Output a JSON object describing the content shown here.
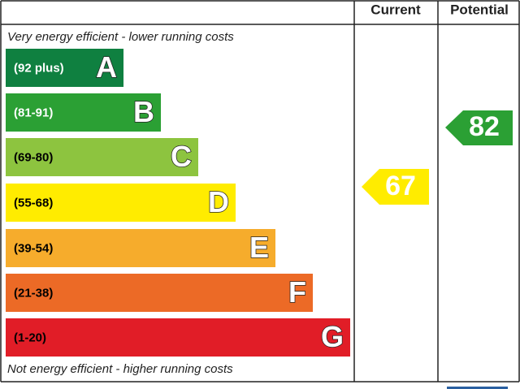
{
  "header": {
    "current": "Current",
    "potential": "Potential"
  },
  "top_note": "Very energy efficient - lower running costs",
  "bottom_note": "Not energy efficient - higher running costs",
  "bands": [
    {
      "range": "(92 plus)",
      "letter": "A",
      "color": "#0f8040",
      "text_color": "#ffffff"
    },
    {
      "range": "(81-91)",
      "letter": "B",
      "color": "#2ba034",
      "text_color": "#ffffff"
    },
    {
      "range": "(69-80)",
      "letter": "C",
      "color": "#8dc43f",
      "text_color": "#000000"
    },
    {
      "range": "(55-68)",
      "letter": "D",
      "color": "#ffec00",
      "text_color": "#000000"
    },
    {
      "range": "(39-54)",
      "letter": "E",
      "color": "#f6ac2c",
      "text_color": "#000000"
    },
    {
      "range": "(21-38)",
      "letter": "F",
      "color": "#ec6a26",
      "text_color": "#000000"
    },
    {
      "range": "(1-20)",
      "letter": "G",
      "color": "#e11d27",
      "text_color": "#000000"
    }
  ],
  "current": {
    "rating": "67",
    "color": "#ffec00"
  },
  "potential": {
    "rating": "82",
    "color": "#2ba034"
  }
}
